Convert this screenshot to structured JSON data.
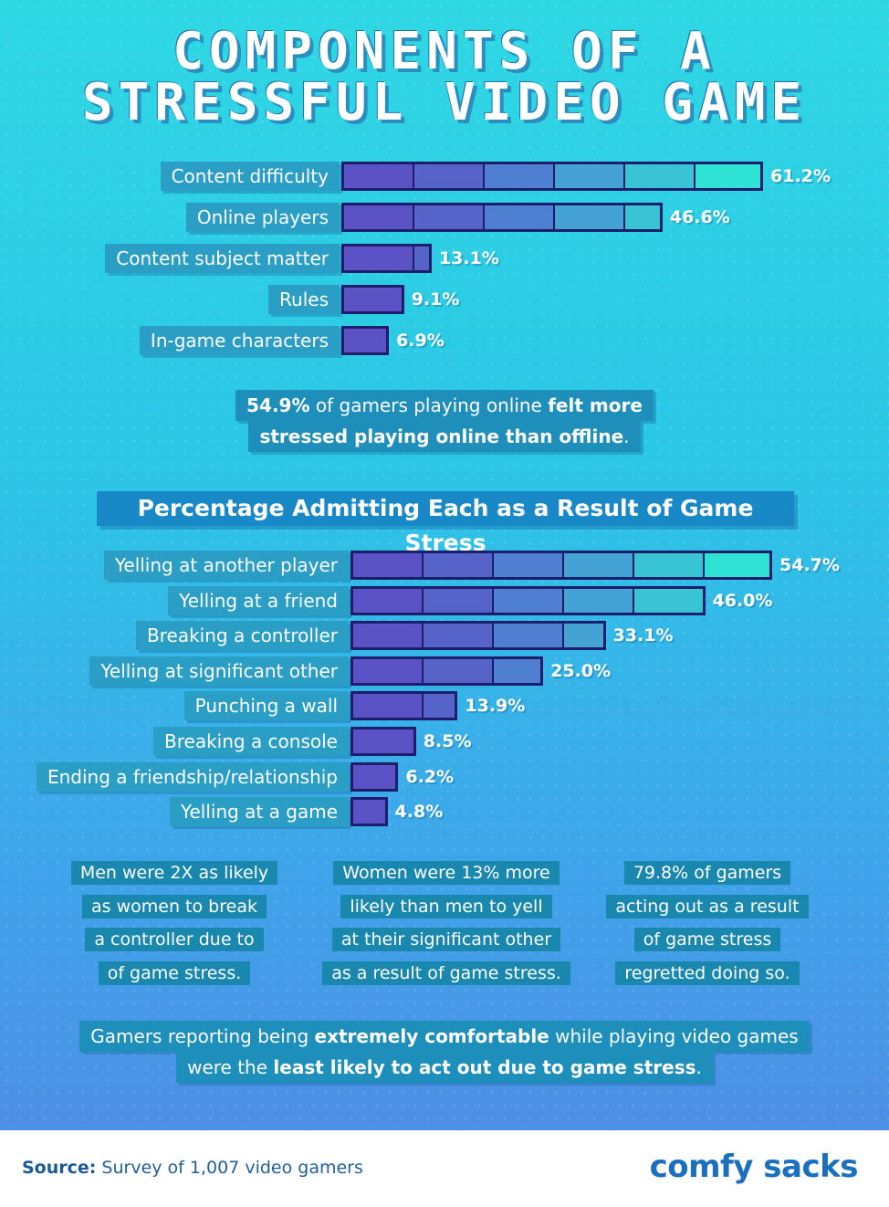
{
  "title_line1": "Components of a",
  "title_line2": "Stressful Video Game",
  "colors": {
    "segments": [
      "#5b52c6",
      "#5663c9",
      "#4f7fd1",
      "#45a2d4",
      "#38c4d3",
      "#2ee3d3"
    ]
  },
  "chart_data": [
    {
      "type": "bar",
      "orientation": "horizontal",
      "title": "",
      "categories": [
        "Content difficulty",
        "Online players",
        "Content subject matter",
        "Rules",
        "In-game characters"
      ],
      "values": [
        61.2,
        46.6,
        13.1,
        9.1,
        6.9
      ],
      "value_labels": [
        "61.2%",
        "46.6%",
        "13.1%",
        "9.1%",
        "6.9%"
      ],
      "unit": "%",
      "xlim": [
        0,
        61.2
      ]
    },
    {
      "type": "bar",
      "orientation": "horizontal",
      "title": "Percentage Admitting Each as a Result of Game Stress",
      "categories": [
        "Yelling at another player",
        "Yelling at a friend",
        "Breaking a controller",
        "Yelling at significant other",
        "Punching a wall",
        "Breaking a console",
        "Ending a friendship/relationship",
        "Yelling at a game"
      ],
      "values": [
        54.7,
        46.0,
        33.1,
        25.0,
        13.9,
        8.5,
        6.2,
        4.8
      ],
      "value_labels": [
        "54.7%",
        "46.0%",
        "33.1%",
        "25.0%",
        "13.9%",
        "8.5%",
        "6.2%",
        "4.8%"
      ],
      "unit": "%",
      "xlim": [
        0,
        54.7
      ]
    }
  ],
  "callout1": {
    "line1_a": "54.9%",
    "line1_b": " of gamers playing online ",
    "line1_c": "felt more",
    "line2_a": "stressed playing online than offline",
    "line2_b": "."
  },
  "facts": [
    [
      "Men were 2X as likely",
      "as women to break",
      "a controller due to",
      "of game stress."
    ],
    [
      "Women were 13% more",
      "likely than men to yell",
      "at their significant other",
      "as a result of game stress."
    ],
    [
      "79.8% of gamers",
      "acting out as a result",
      "of game stress",
      "regretted doing so."
    ]
  ],
  "callout2": {
    "line1_a": "Gamers reporting being ",
    "line1_b": "extremely comfortable",
    "line1_c": " while playing video games",
    "line2_a": "were the ",
    "line2_b": "least likely to act out due to game stress",
    "line2_c": "."
  },
  "source_label": "Source:",
  "source_text": " Survey of 1,007 video gamers",
  "logo": "comfy sacks"
}
